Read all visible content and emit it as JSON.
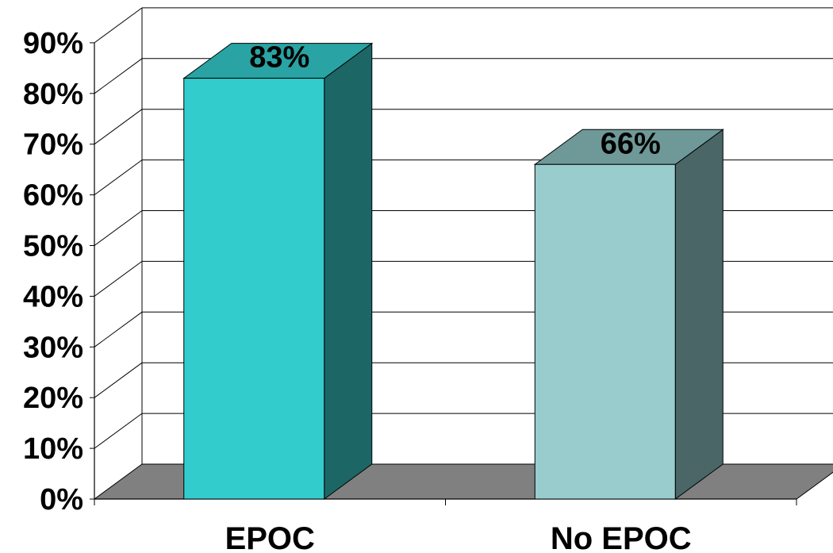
{
  "chart_data": {
    "type": "bar",
    "style": "3d-column",
    "categories": [
      "EPOC",
      "No EPOC"
    ],
    "values": [
      83,
      66
    ],
    "data_labels": [
      "83%",
      "66%"
    ],
    "ylim": [
      0,
      90
    ],
    "y_ticks": [
      "0%",
      "10%",
      "20%",
      "30%",
      "40%",
      "50%",
      "60%",
      "70%",
      "80%",
      "90%"
    ],
    "title": "",
    "xlabel": "",
    "ylabel": "",
    "grid": true,
    "legend": "none",
    "colors": {
      "bar_front": [
        "#33cccc",
        "#99cccc"
      ],
      "bar_top": [
        "#29a3a3",
        "#6f9999"
      ],
      "bar_side": [
        "#1c6666",
        "#4a6666"
      ],
      "floor": "#808080"
    }
  }
}
